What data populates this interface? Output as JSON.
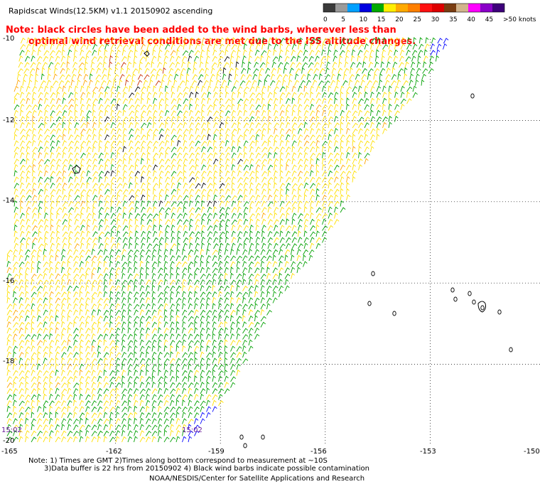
{
  "title": "Rapidscat Winds(12.5KM) v1.1 20150902 ascending",
  "note": {
    "line1": "Note: black circles have been added to the wind barbs, wherever less than",
    "line2": "optimal wind retrieval conditions are met due to the ISS altitude changes."
  },
  "colorbar": {
    "labels": [
      "0",
      "5",
      "10",
      "15",
      "20",
      "25",
      "30",
      "35",
      "40",
      "45",
      ">50 knots"
    ],
    "colors": [
      "#3a3a3a",
      "#9a9a9a",
      "#00a0ff",
      "#0000e0",
      "#00aa00",
      "#ffee00",
      "#ffaa00",
      "#ff7f00",
      "#ff1010",
      "#dd0000",
      "#7a3d12",
      "#d2b48c",
      "#ff00ff",
      "#8a00c8",
      "#3d007a"
    ]
  },
  "axes": {
    "lat_labels": [
      "-10",
      "-12",
      "-14",
      "-16",
      "-18",
      "-20"
    ],
    "lon_labels": [
      "-165",
      "-162",
      "-159",
      "-156",
      "-153",
      "-150"
    ]
  },
  "times": [
    "15:02",
    "15:02"
  ],
  "footer": {
    "line1": "Note: 1) Times are GMT 2)Times along bottom correspond to measurement at ~10S",
    "line2": "3)Data buffer is 22 hrs from 20150902 4) Black wind barbs indicate possible contamination",
    "line3": "NOAA/NESDIS/Center for Satellite Applications and Research"
  },
  "map": {
    "lon_range": [
      -165,
      -150
    ],
    "lat_range": [
      -20,
      -10
    ],
    "barb_colors": {
      "green": "#00a000",
      "yellow": "#ffe000",
      "black": "#000000",
      "red": "#c83200",
      "blue": "#0000ff",
      "orange": "#ffa500"
    }
  }
}
